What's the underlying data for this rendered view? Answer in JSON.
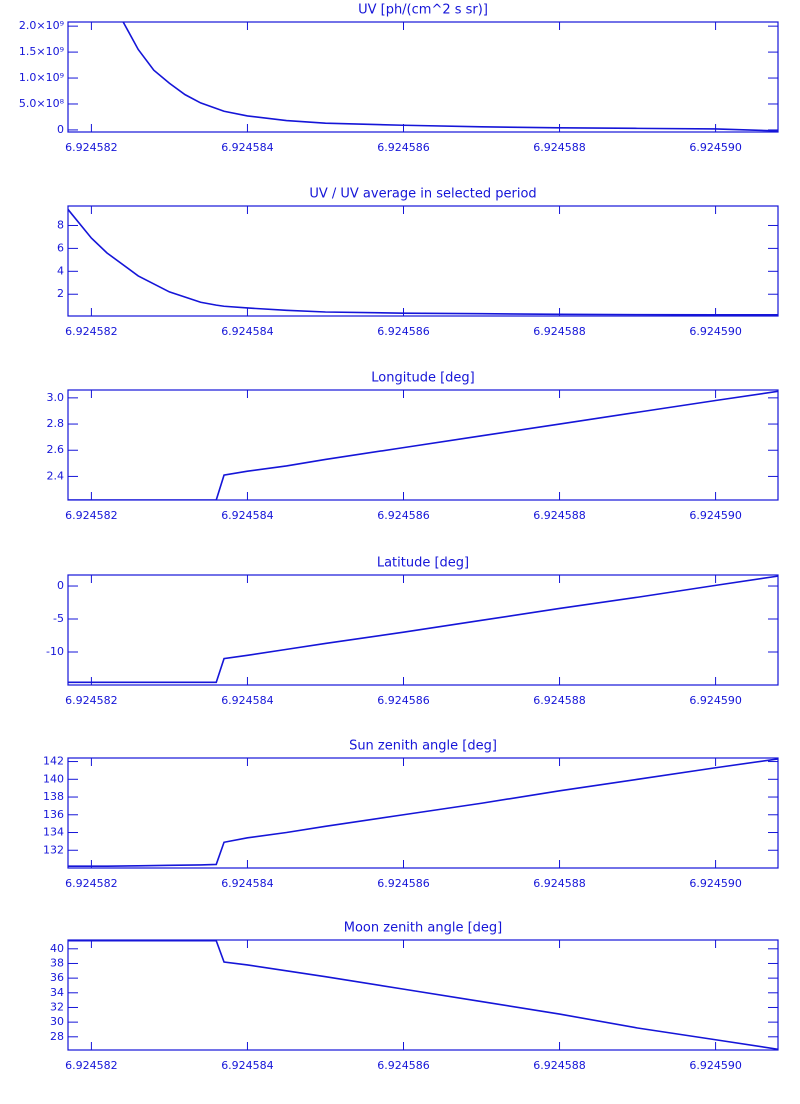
{
  "chart_data": [
    {
      "type": "line",
      "title": "UV [ph/(cm^2 s sr)]",
      "color": "#1515d8",
      "x": [
        6.9245824,
        6.9245826,
        6.9245828,
        6.924583,
        6.9245832,
        6.9245834,
        6.9245837,
        6.924584,
        6.9245845,
        6.924585,
        6.924586,
        6.924587,
        6.924588,
        6.924589,
        6.92459,
        6.9245908
      ],
      "values": [
        2100000000,
        1550000000,
        1150000000,
        900000000,
        680000000,
        520000000,
        360000000,
        270000000,
        180000000,
        130000000,
        90000000,
        60000000,
        40000000,
        30000000,
        20000000,
        -20000000
      ],
      "xlim": [
        6.9245817,
        6.9245908
      ],
      "ylim": [
        -40000000,
        2080000000
      ],
      "xticks": [
        6.924582,
        6.924584,
        6.924586,
        6.924588,
        {
          "value": 6.92459,
          "label": "6.924590"
        }
      ],
      "yticks": [
        0,
        {
          "value": 500000000,
          "label": "5.0×10⁸"
        },
        {
          "value": 1000000000,
          "label": "1.0×10⁹"
        },
        {
          "value": 1500000000,
          "label": "1.5×10⁹"
        },
        {
          "value": 2000000000,
          "label": "2.0×10⁹"
        }
      ]
    },
    {
      "type": "line",
      "title": "UV / UV average in selected period",
      "color": "#1515d8",
      "x": [
        6.9245817,
        6.924582,
        6.9245822,
        6.9245826,
        6.924583,
        6.9245834,
        6.9245836,
        6.9245837,
        6.924584,
        6.9245845,
        6.924585,
        6.924586,
        6.924587,
        6.924588,
        6.924589,
        6.92459,
        6.9245908
      ],
      "values": [
        9.4,
        6.9,
        5.6,
        3.6,
        2.2,
        1.3,
        1.05,
        0.95,
        0.8,
        0.6,
        0.45,
        0.35,
        0.3,
        0.25,
        0.22,
        0.2,
        0.2
      ],
      "xlim": [
        6.9245817,
        6.9245908
      ],
      "ylim": [
        0.1,
        9.7
      ],
      "xticks": [
        6.924582,
        6.924584,
        6.924586,
        6.924588,
        {
          "value": 6.92459,
          "label": "6.924590"
        }
      ],
      "yticks": [
        2,
        4,
        6,
        8
      ]
    },
    {
      "type": "line",
      "title": "Longitude [deg]",
      "color": "#1515d8",
      "x": [
        6.9245817,
        6.924582,
        6.9245822,
        6.9245826,
        6.924583,
        6.9245834,
        6.9245836,
        6.9245837,
        6.924584,
        6.9245845,
        6.924585,
        6.924586,
        6.924587,
        6.924588,
        6.924589,
        6.92459,
        6.9245908
      ],
      "values": [
        2.22,
        2.22,
        2.22,
        2.22,
        2.22,
        2.22,
        2.22,
        2.41,
        2.44,
        2.48,
        2.53,
        2.62,
        2.71,
        2.8,
        2.89,
        2.98,
        3.05
      ],
      "xlim": [
        6.9245817,
        6.9245908
      ],
      "ylim": [
        2.22,
        3.06
      ],
      "xticks": [
        6.924582,
        6.924584,
        6.924586,
        6.924588,
        {
          "value": 6.92459,
          "label": "6.924590"
        }
      ],
      "yticks": [
        2.4,
        2.6,
        2.8,
        {
          "value": 3,
          "label": "3.0"
        }
      ]
    },
    {
      "type": "line",
      "title": "Latitude [deg]",
      "color": "#1515d8",
      "x": [
        6.9245817,
        6.924582,
        6.9245822,
        6.9245826,
        6.924583,
        6.9245834,
        6.9245836,
        6.9245837,
        6.924584,
        6.9245845,
        6.924585,
        6.924586,
        6.924587,
        6.924588,
        6.924589,
        6.92459,
        6.9245908
      ],
      "values": [
        -14.6,
        -14.6,
        -14.6,
        -14.6,
        -14.6,
        -14.6,
        -14.6,
        -11,
        -10.5,
        -9.6,
        -8.7,
        -7,
        -5.2,
        -3.4,
        -1.7,
        0.1,
        1.5
      ],
      "xlim": [
        6.9245817,
        6.9245908
      ],
      "ylim": [
        -15,
        1.67
      ],
      "xticks": [
        6.924582,
        6.924584,
        6.924586,
        6.924588,
        {
          "value": 6.92459,
          "label": "6.924590"
        }
      ],
      "yticks": [
        -10,
        -5,
        0
      ]
    },
    {
      "type": "line",
      "title": "Sun zenith angle [deg]",
      "color": "#1515d8",
      "x": [
        6.9245817,
        6.924582,
        6.9245822,
        6.9245826,
        6.924583,
        6.9245834,
        6.9245836,
        6.9245837,
        6.924584,
        6.9245845,
        6.924585,
        6.924586,
        6.924587,
        6.924588,
        6.924589,
        6.92459,
        6.9245908
      ],
      "values": [
        130.2,
        130.2,
        130.2,
        130.25,
        130.3,
        130.35,
        130.4,
        132.9,
        133.4,
        134,
        134.7,
        136,
        137.3,
        138.7,
        140,
        141.3,
        142.3
      ],
      "xlim": [
        6.9245817,
        6.9245908
      ],
      "ylim": [
        130,
        142.4
      ],
      "xticks": [
        6.924582,
        6.924584,
        6.924586,
        6.924588,
        {
          "value": 6.92459,
          "label": "6.924590"
        }
      ],
      "yticks": [
        132,
        134,
        136,
        138,
        140,
        142
      ]
    },
    {
      "type": "line",
      "title": "Moon zenith angle [deg]",
      "color": "#1515d8",
      "x": [
        6.9245817,
        6.924582,
        6.9245822,
        6.9245826,
        6.924583,
        6.9245834,
        6.9245836,
        6.9245837,
        6.924584,
        6.9245845,
        6.924585,
        6.924586,
        6.924587,
        6.924588,
        6.924589,
        6.92459,
        6.9245908
      ],
      "values": [
        41.1,
        41.1,
        41.1,
        41.1,
        41.1,
        41.1,
        41.1,
        38.2,
        37.8,
        37,
        36.2,
        34.5,
        32.8,
        31.1,
        29.2,
        27.6,
        26.3
      ],
      "xlim": [
        6.9245817,
        6.9245908
      ],
      "ylim": [
        26.2,
        41.2
      ],
      "xticks": [
        6.924582,
        6.924584,
        6.924586,
        6.924588,
        {
          "value": 6.92459,
          "label": "6.924590"
        }
      ],
      "yticks": [
        28,
        30,
        32,
        34,
        36,
        38,
        40
      ]
    }
  ]
}
